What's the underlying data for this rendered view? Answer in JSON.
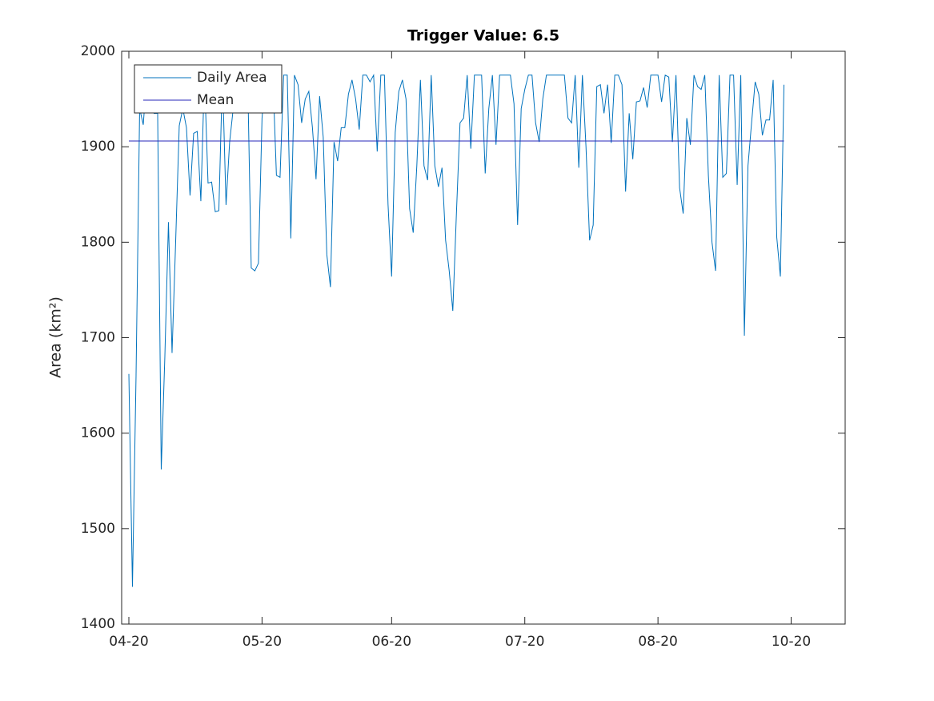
{
  "chart_data": {
    "type": "line",
    "title": "Trigger Value: 6.5",
    "y_label": "Area (km²)",
    "series": [
      {
        "name": "Daily Area",
        "color": "#0072bd",
        "values": [
          1662,
          1439,
          1660,
          1940,
          1923,
          1975,
          1960,
          1935,
          1935,
          1562,
          1680,
          1821,
          1684,
          1800,
          1922,
          1940,
          1920,
          1849,
          1914,
          1916,
          1843,
          1975,
          1862,
          1863,
          1832,
          1833,
          1975,
          1839,
          1905,
          1940,
          1975,
          1975,
          1975,
          1975,
          1773,
          1770,
          1778,
          1930,
          1975,
          1975,
          1975,
          1870,
          1868,
          1975,
          1975,
          1804,
          1975,
          1965,
          1925,
          1950,
          1958,
          1920,
          1866,
          1953,
          1910,
          1787,
          1753,
          1905,
          1885,
          1920,
          1920,
          1955,
          1970,
          1950,
          1918,
          1975,
          1975,
          1968,
          1975,
          1895,
          1975,
          1975,
          1840,
          1764,
          1915,
          1958,
          1970,
          1950,
          1835,
          1810,
          1880,
          1970,
          1880,
          1865,
          1975,
          1880,
          1858,
          1878,
          1802,
          1770,
          1728,
          1830,
          1925,
          1930,
          1975,
          1898,
          1975,
          1975,
          1975,
          1872,
          1940,
          1975,
          1902,
          1975,
          1975,
          1975,
          1975,
          1945,
          1818,
          1940,
          1960,
          1975,
          1975,
          1925,
          1905,
          1950,
          1975,
          1975,
          1975,
          1975,
          1975,
          1975,
          1930,
          1925,
          1975,
          1878,
          1975,
          1900,
          1802,
          1818,
          1963,
          1965,
          1935,
          1965,
          1904,
          1975,
          1975,
          1965,
          1853,
          1935,
          1887,
          1947,
          1948,
          1962,
          1941,
          1975,
          1975,
          1975,
          1947,
          1975,
          1973,
          1905,
          1975,
          1857,
          1830,
          1930,
          1902,
          1975,
          1963,
          1960,
          1975,
          1870,
          1800,
          1770,
          1975,
          1868,
          1872,
          1975,
          1975,
          1860,
          1975,
          1702,
          1880,
          1925,
          1968,
          1955,
          1912,
          1928,
          1928,
          1970,
          1805,
          1764,
          1965
        ]
      }
    ],
    "mean_line": {
      "name": "Mean",
      "value": 1906,
      "color": "#2727b8"
    },
    "xlim": [
      -2,
      199
    ],
    "xticks": [
      {
        "value": 0,
        "label": "04-20"
      },
      {
        "value": 37,
        "label": "05-20"
      },
      {
        "value": 73,
        "label": "06-20"
      },
      {
        "value": 110,
        "label": "07-20"
      },
      {
        "value": 147,
        "label": "08-20"
      },
      {
        "value": 184,
        "label": "10-20"
      }
    ],
    "ylim": [
      1400,
      2000
    ],
    "yticks": [
      1400,
      1500,
      1600,
      1700,
      1800,
      1900,
      2000
    ],
    "legend": "upper left",
    "grid": false
  }
}
